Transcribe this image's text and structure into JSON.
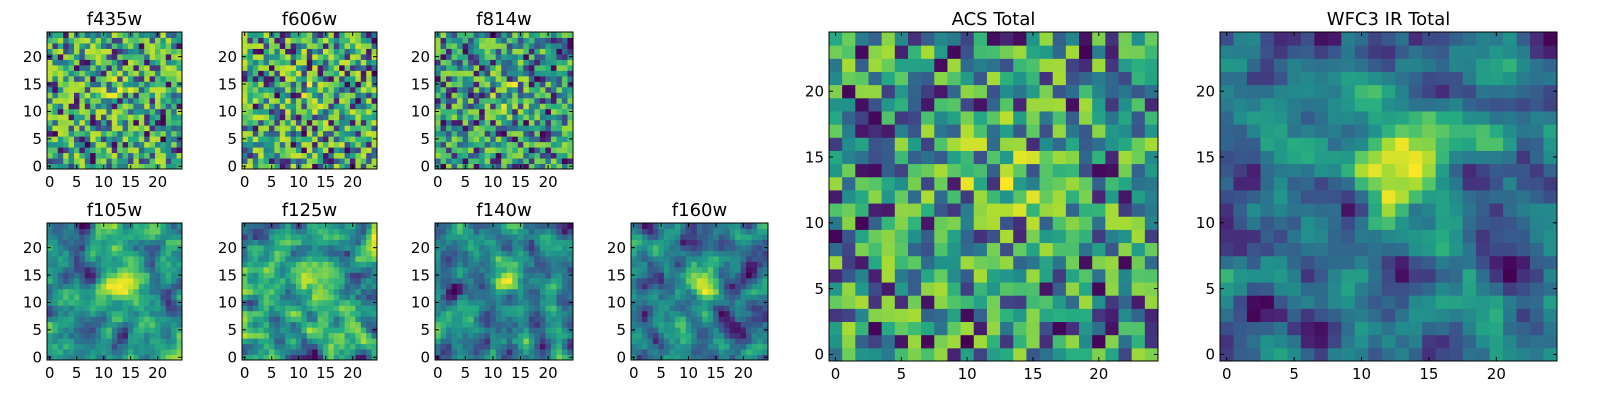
{
  "chart_data": [
    {
      "type": "heatmap",
      "title": "f435w",
      "xticks": [
        "0",
        "5",
        "10",
        "15",
        "20"
      ],
      "yticks": [
        "0",
        "5",
        "10",
        "15",
        "20"
      ],
      "grid_size": [
        25,
        25
      ],
      "colormap": "viridis",
      "seed": 11,
      "smooth": 0,
      "blob": 0.1
    },
    {
      "type": "heatmap",
      "title": "f606w",
      "xticks": [
        "0",
        "5",
        "10",
        "15",
        "20"
      ],
      "yticks": [
        "0",
        "5",
        "10",
        "15",
        "20"
      ],
      "grid_size": [
        25,
        25
      ],
      "colormap": "viridis",
      "seed": 23,
      "smooth": 0,
      "blob": 0.1
    },
    {
      "type": "heatmap",
      "title": "f814w",
      "xticks": [
        "0",
        "5",
        "10",
        "15",
        "20"
      ],
      "yticks": [
        "0",
        "5",
        "10",
        "15",
        "20"
      ],
      "grid_size": [
        25,
        25
      ],
      "colormap": "viridis",
      "seed": 37,
      "smooth": 0,
      "blob": 0.25
    },
    {
      "type": "heatmap",
      "title": "f105w",
      "xticks": [
        "0",
        "5",
        "10",
        "15",
        "20"
      ],
      "yticks": [
        "0",
        "5",
        "10",
        "15",
        "20"
      ],
      "grid_size": [
        25,
        25
      ],
      "colormap": "viridis",
      "seed": 41,
      "smooth": 1,
      "blob": 0.35
    },
    {
      "type": "heatmap",
      "title": "f125w",
      "xticks": [
        "0",
        "5",
        "10",
        "15",
        "20"
      ],
      "yticks": [
        "0",
        "5",
        "10",
        "15",
        "20"
      ],
      "grid_size": [
        25,
        25
      ],
      "colormap": "viridis",
      "seed": 53,
      "smooth": 1,
      "blob": 0.3
    },
    {
      "type": "heatmap",
      "title": "f140w",
      "xticks": [
        "0",
        "5",
        "10",
        "15",
        "20"
      ],
      "yticks": [
        "0",
        "5",
        "10",
        "15",
        "20"
      ],
      "grid_size": [
        25,
        25
      ],
      "colormap": "viridis",
      "seed": 67,
      "smooth": 1,
      "blob": 0.3
    },
    {
      "type": "heatmap",
      "title": "f160w",
      "xticks": [
        "0",
        "5",
        "10",
        "15",
        "20"
      ],
      "yticks": [
        "0",
        "5",
        "10",
        "15",
        "20"
      ],
      "grid_size": [
        25,
        25
      ],
      "colormap": "viridis",
      "seed": 79,
      "smooth": 1,
      "blob": 0.35
    },
    {
      "type": "heatmap",
      "title": "ACS Total",
      "xticks": [
        "0",
        "5",
        "10",
        "15",
        "20"
      ],
      "yticks": [
        "0",
        "5",
        "10",
        "15",
        "20"
      ],
      "grid_size": [
        25,
        25
      ],
      "colormap": "viridis",
      "seed": 83,
      "smooth": 0,
      "blob": 0.2
    },
    {
      "type": "heatmap",
      "title": "WFC3 IR Total",
      "xticks": [
        "0",
        "5",
        "10",
        "15",
        "20"
      ],
      "yticks": [
        "0",
        "5",
        "10",
        "15",
        "20"
      ],
      "grid_size": [
        25,
        25
      ],
      "colormap": "viridis",
      "seed": 97,
      "smooth": 1,
      "blob": 0.45
    }
  ]
}
